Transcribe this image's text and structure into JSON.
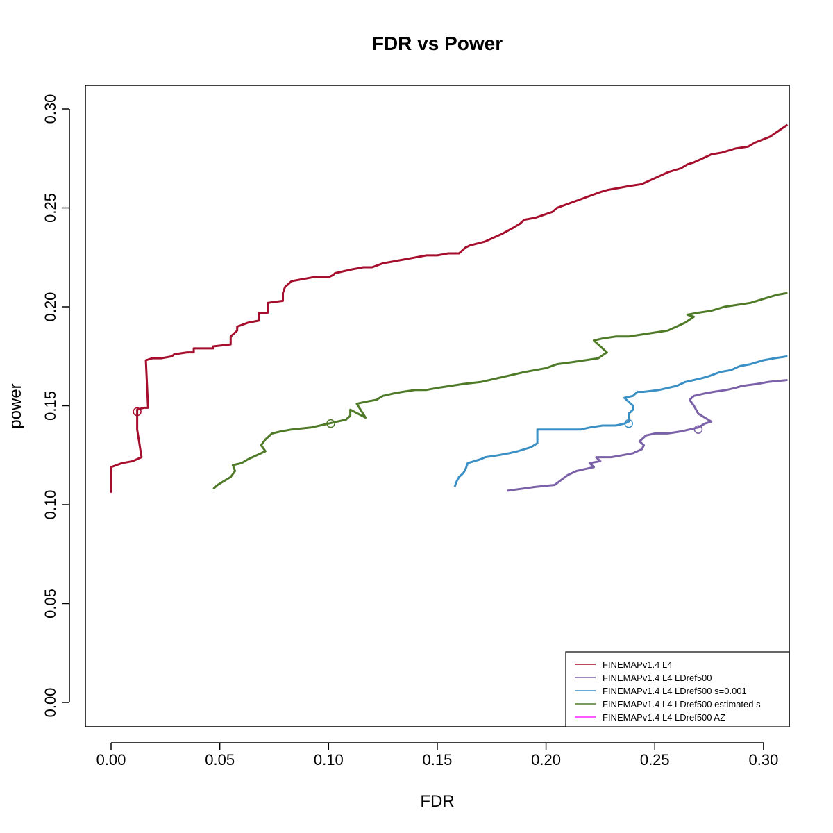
{
  "chart_data": {
    "type": "line",
    "title": "FDR vs Power",
    "xlabel": "FDR",
    "ylabel": "power",
    "xlim": [
      0.0,
      0.31
    ],
    "ylim": [
      0.0,
      0.305
    ],
    "xticks": [
      "0.00",
      "0.05",
      "0.10",
      "0.15",
      "0.20",
      "0.25",
      "0.30"
    ],
    "yticks": [
      "0.00",
      "0.05",
      "0.10",
      "0.15",
      "0.20",
      "0.25",
      "0.30"
    ],
    "grid": false,
    "legend_position": "bottom-right",
    "series": [
      {
        "name": "FINEMAPv1.4 L4",
        "color": "#a50f2d",
        "marker": {
          "x": 0.012,
          "y": 0.147
        },
        "x": [
          0.0,
          0.0,
          0.0,
          0.005,
          0.01,
          0.014,
          0.012,
          0.012,
          0.015,
          0.017,
          0.016,
          0.019,
          0.02,
          0.023,
          0.028,
          0.029,
          0.035,
          0.038,
          0.038,
          0.047,
          0.047,
          0.055,
          0.055,
          0.058,
          0.058,
          0.063,
          0.068,
          0.068,
          0.072,
          0.072,
          0.079,
          0.079,
          0.08,
          0.083,
          0.093,
          0.1,
          0.102,
          0.103,
          0.111,
          0.116,
          0.12,
          0.125,
          0.13,
          0.135,
          0.14,
          0.145,
          0.15,
          0.155,
          0.16,
          0.163,
          0.165,
          0.172,
          0.176,
          0.18,
          0.185,
          0.188,
          0.19,
          0.195,
          0.203,
          0.205,
          0.21,
          0.215,
          0.22,
          0.225,
          0.228,
          0.233,
          0.238,
          0.244,
          0.25,
          0.256,
          0.262,
          0.265,
          0.268,
          0.272,
          0.276,
          0.281,
          0.287,
          0.293,
          0.296,
          0.303,
          0.311
        ],
        "y": [
          0.106,
          0.112,
          0.119,
          0.121,
          0.122,
          0.124,
          0.138,
          0.148,
          0.149,
          0.149,
          0.173,
          0.174,
          0.174,
          0.174,
          0.175,
          0.176,
          0.177,
          0.177,
          0.179,
          0.179,
          0.18,
          0.181,
          0.185,
          0.188,
          0.19,
          0.192,
          0.193,
          0.197,
          0.197,
          0.202,
          0.203,
          0.207,
          0.21,
          0.213,
          0.215,
          0.215,
          0.216,
          0.217,
          0.219,
          0.22,
          0.22,
          0.222,
          0.223,
          0.224,
          0.225,
          0.226,
          0.226,
          0.227,
          0.227,
          0.23,
          0.231,
          0.233,
          0.235,
          0.237,
          0.24,
          0.242,
          0.244,
          0.245,
          0.248,
          0.25,
          0.252,
          0.254,
          0.256,
          0.258,
          0.259,
          0.26,
          0.261,
          0.262,
          0.265,
          0.268,
          0.27,
          0.272,
          0.273,
          0.275,
          0.277,
          0.278,
          0.28,
          0.281,
          0.283,
          0.286,
          0.292
        ]
      },
      {
        "name": "FINEMAPv1.4 L4 LDref500",
        "color": "#7b61a8",
        "marker": {
          "x": 0.27,
          "y": 0.138
        },
        "x": [
          0.182,
          0.195,
          0.204,
          0.21,
          0.214,
          0.218,
          0.222,
          0.22,
          0.225,
          0.223,
          0.23,
          0.235,
          0.24,
          0.242,
          0.244,
          0.245,
          0.243,
          0.246,
          0.25,
          0.256,
          0.262,
          0.266,
          0.27,
          0.273,
          0.276,
          0.27,
          0.268,
          0.266,
          0.268,
          0.272,
          0.277,
          0.283,
          0.287,
          0.29,
          0.297,
          0.302,
          0.311
        ],
        "y": [
          0.107,
          0.109,
          0.11,
          0.115,
          0.117,
          0.118,
          0.119,
          0.121,
          0.122,
          0.124,
          0.124,
          0.125,
          0.126,
          0.127,
          0.128,
          0.13,
          0.132,
          0.135,
          0.136,
          0.136,
          0.137,
          0.138,
          0.139,
          0.141,
          0.142,
          0.146,
          0.15,
          0.153,
          0.155,
          0.156,
          0.157,
          0.158,
          0.159,
          0.16,
          0.161,
          0.162,
          0.163
        ]
      },
      {
        "name": "FINEMAPv1.4 L4 LDref500 s=0.001",
        "color": "#3a8fc4",
        "marker": {
          "x": 0.238,
          "y": 0.141
        },
        "x": [
          0.158,
          0.159,
          0.16,
          0.162,
          0.163,
          0.164,
          0.167,
          0.17,
          0.172,
          0.178,
          0.183,
          0.187,
          0.193,
          0.196,
          0.196,
          0.2,
          0.203,
          0.21,
          0.216,
          0.22,
          0.226,
          0.232,
          0.236,
          0.238,
          0.238,
          0.24,
          0.24,
          0.236,
          0.24,
          0.242,
          0.245,
          0.252,
          0.26,
          0.264,
          0.268,
          0.272,
          0.275,
          0.28,
          0.285,
          0.289,
          0.294,
          0.3,
          0.305,
          0.311
        ],
        "y": [
          0.109,
          0.112,
          0.114,
          0.116,
          0.118,
          0.121,
          0.122,
          0.123,
          0.124,
          0.125,
          0.126,
          0.127,
          0.129,
          0.131,
          0.138,
          0.138,
          0.138,
          0.138,
          0.138,
          0.139,
          0.14,
          0.14,
          0.141,
          0.142,
          0.146,
          0.148,
          0.15,
          0.154,
          0.155,
          0.157,
          0.157,
          0.158,
          0.16,
          0.162,
          0.163,
          0.164,
          0.165,
          0.167,
          0.168,
          0.17,
          0.171,
          0.173,
          0.174,
          0.175
        ]
      },
      {
        "name": "FINEMAPv1.4 L4 LDref500 estimated s",
        "color": "#4f7a28",
        "marker": {
          "x": 0.101,
          "y": 0.141
        },
        "x": [
          0.047,
          0.049,
          0.052,
          0.055,
          0.057,
          0.056,
          0.06,
          0.063,
          0.067,
          0.071,
          0.069,
          0.071,
          0.074,
          0.078,
          0.083,
          0.092,
          0.096,
          0.1,
          0.104,
          0.108,
          0.11,
          0.11,
          0.117,
          0.113,
          0.117,
          0.122,
          0.125,
          0.129,
          0.134,
          0.14,
          0.145,
          0.15,
          0.156,
          0.162,
          0.17,
          0.178,
          0.186,
          0.19,
          0.195,
          0.2,
          0.205,
          0.212,
          0.218,
          0.224,
          0.228,
          0.222,
          0.226,
          0.232,
          0.238,
          0.244,
          0.25,
          0.256,
          0.26,
          0.264,
          0.268,
          0.265,
          0.27,
          0.276,
          0.282,
          0.288,
          0.294,
          0.3,
          0.306,
          0.311
        ],
        "y": [
          0.108,
          0.11,
          0.112,
          0.114,
          0.117,
          0.12,
          0.121,
          0.123,
          0.125,
          0.127,
          0.13,
          0.133,
          0.136,
          0.137,
          0.138,
          0.139,
          0.14,
          0.141,
          0.142,
          0.143,
          0.145,
          0.148,
          0.144,
          0.151,
          0.152,
          0.153,
          0.155,
          0.156,
          0.157,
          0.158,
          0.158,
          0.159,
          0.16,
          0.161,
          0.162,
          0.164,
          0.166,
          0.167,
          0.168,
          0.169,
          0.171,
          0.172,
          0.173,
          0.174,
          0.177,
          0.183,
          0.184,
          0.185,
          0.185,
          0.186,
          0.187,
          0.188,
          0.19,
          0.192,
          0.195,
          0.196,
          0.197,
          0.198,
          0.2,
          0.201,
          0.202,
          0.204,
          0.206,
          0.207
        ]
      },
      {
        "name": "FINEMAPv1.4 L4 LDref500 AZ",
        "color": "#ff22ff",
        "x": [],
        "y": []
      }
    ]
  }
}
